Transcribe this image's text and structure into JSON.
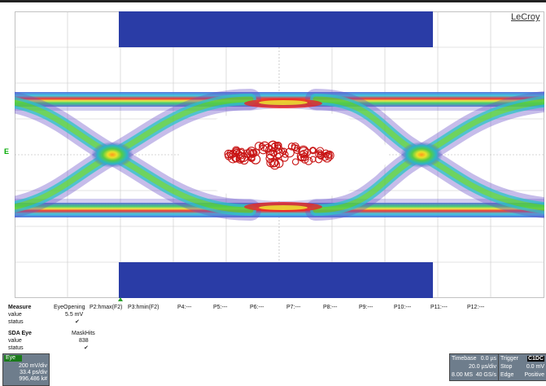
{
  "brand": "LeCroy",
  "channel_marker": "E",
  "colors": {
    "mask": "#2a3ca6",
    "grid": "#bbbbbb",
    "panel": "#6e7d8c",
    "violation": "#c81414"
  },
  "measure": {
    "title": "Measure",
    "labels": [
      "value",
      "status"
    ],
    "params": [
      {
        "name": "EyeOpening",
        "value": "5.5 mV",
        "status": "✔"
      },
      {
        "name": "P2:hmax(F2)"
      },
      {
        "name": "P3:hmin(F2)"
      },
      {
        "name": "P4:---"
      },
      {
        "name": "P5:---"
      },
      {
        "name": "P6:---"
      },
      {
        "name": "P7:---"
      },
      {
        "name": "P8:---"
      },
      {
        "name": "P9:---"
      },
      {
        "name": "P10:---"
      },
      {
        "name": "P11:---"
      },
      {
        "name": "P12:---"
      }
    ]
  },
  "sda": {
    "title": "SDA Eye",
    "labels": [
      "value",
      "status"
    ],
    "param": {
      "name": "MaskHits",
      "value": "838",
      "status": "✔"
    }
  },
  "eye_box": {
    "tag": "Eye",
    "vdiv": "200 mV/div",
    "hdiv": "33.4 ps/div",
    "count": "996,486 k#"
  },
  "timebase": {
    "label": "Timebase",
    "offset": "0.0 µs",
    "div": "20.0 µs/div",
    "samples": "8.00 MS",
    "rate": "40 GS/s"
  },
  "trigger": {
    "label": "Trigger",
    "tag": "C1DC",
    "mode": "Stop",
    "level": "0.0 mV",
    "type": "Edge",
    "slope": "Positive"
  }
}
